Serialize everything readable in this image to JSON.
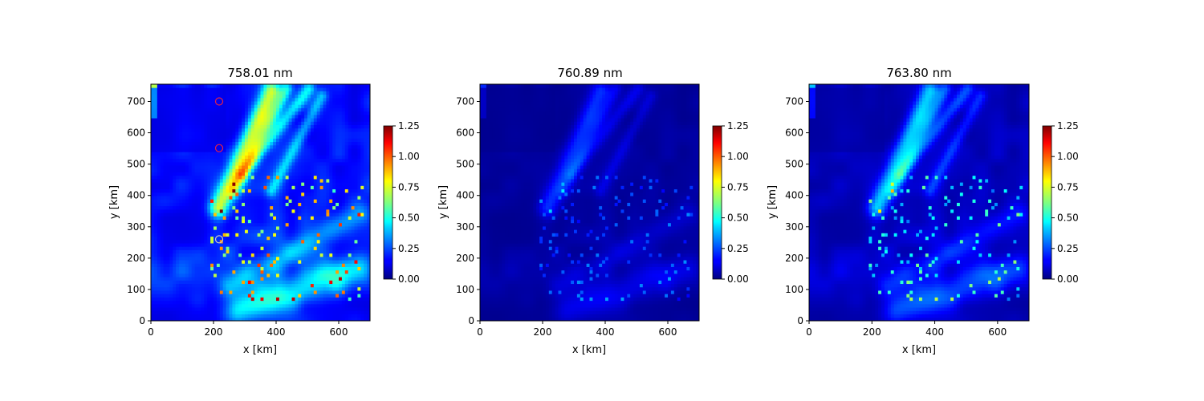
{
  "chart_data": [
    {
      "type": "heatmap",
      "title": "758.01 nm",
      "xlabel": "x [km]",
      "ylabel": "y [km]",
      "xlim": [
        0,
        700
      ],
      "ylim": [
        0,
        755
      ],
      "xticks": [
        0,
        200,
        400,
        600
      ],
      "yticks": [
        0,
        100,
        200,
        300,
        400,
        500,
        600,
        700
      ],
      "colorbar": {
        "range": [
          0,
          1.25
        ],
        "ticks": [
          "0.00",
          "0.25",
          "0.50",
          "0.75",
          "1.00",
          "1.25"
        ],
        "colormap": "jet"
      },
      "grid": false,
      "background_level": 0.12,
      "intensity": 1.0,
      "markers": [
        {
          "x": 218,
          "y": 700,
          "color": "#e0204a"
        },
        {
          "x": 218,
          "y": 551,
          "color": "#e0204a"
        },
        {
          "x": 218,
          "y": 260,
          "color": "#c8c8c8"
        }
      ]
    },
    {
      "type": "heatmap",
      "title": "760.89 nm",
      "xlabel": "x [km]",
      "ylabel": "y [km]",
      "xlim": [
        0,
        700
      ],
      "ylim": [
        0,
        755
      ],
      "xticks": [
        0,
        200,
        400,
        600
      ],
      "yticks": [
        0,
        100,
        200,
        300,
        400,
        500,
        600,
        700
      ],
      "colorbar": {
        "range": [
          0,
          1.25
        ],
        "ticks": [
          "0.00",
          "0.25",
          "0.50",
          "0.75",
          "1.00",
          "1.25"
        ],
        "colormap": "jet"
      },
      "grid": false,
      "background_level": 0.02,
      "intensity": 0.32,
      "markers": []
    },
    {
      "type": "heatmap",
      "title": "763.80 nm",
      "xlabel": "x [km]",
      "ylabel": "y [km]",
      "xlim": [
        0,
        700
      ],
      "ylim": [
        0,
        755
      ],
      "xticks": [
        0,
        200,
        400,
        600
      ],
      "yticks": [
        0,
        100,
        200,
        300,
        400,
        500,
        600,
        700
      ],
      "colorbar": {
        "range": [
          0,
          1.25
        ],
        "ticks": [
          "0.00",
          "0.25",
          "0.50",
          "0.75",
          "1.00",
          "1.25"
        ],
        "colormap": "jet"
      },
      "grid": false,
      "background_level": 0.04,
      "intensity": 0.62,
      "markers": []
    }
  ]
}
